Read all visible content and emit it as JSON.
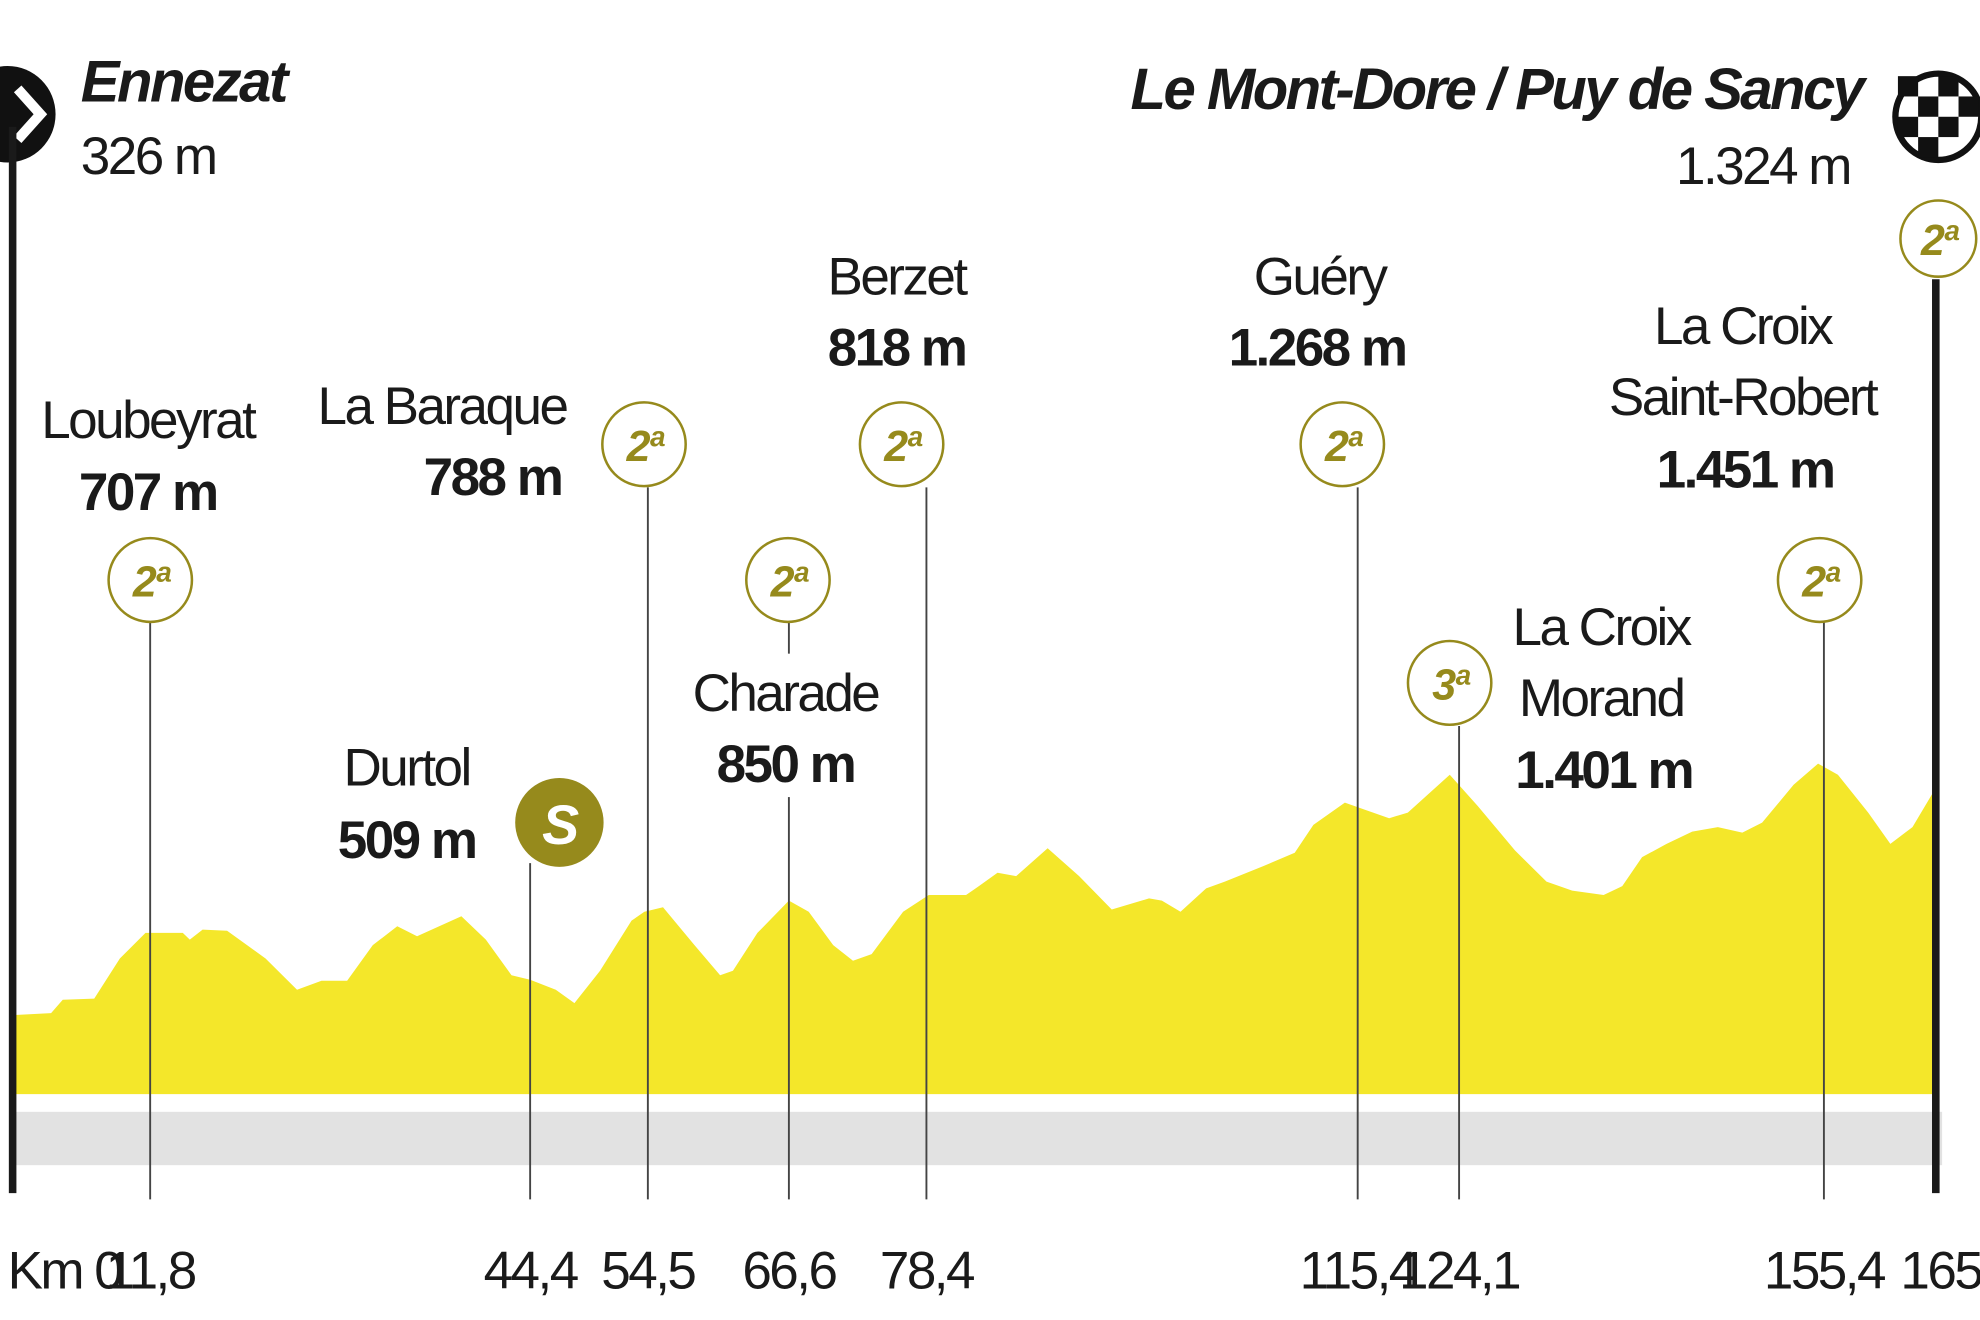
{
  "chart_data": {
    "type": "area",
    "color": "#f4e72a",
    "start": {
      "name": "Ennezat",
      "elevation": "326 m"
    },
    "finish": {
      "name": "Le Mont-Dore / Puy de Sancy",
      "elevation": "1.324 m",
      "category": "2ª"
    },
    "annotations": [
      {
        "name": [
          "Loubeyrat"
        ],
        "elevation": "707 m",
        "category": "2ª"
      },
      {
        "name": [
          "Durtol"
        ],
        "elevation": "509 m",
        "category": "S"
      },
      {
        "name": [
          "La Baraque"
        ],
        "elevation": "788 m",
        "category": "2ª"
      },
      {
        "name": [
          "Charade"
        ],
        "elevation": "850 m",
        "category": "2ª"
      },
      {
        "name": [
          "Berzet"
        ],
        "elevation": "818 m",
        "category": "2ª"
      },
      {
        "name": [
          "Guéry"
        ],
        "elevation": "1.268 m",
        "category": "2ª"
      },
      {
        "name": [
          "La Croix",
          "Morand"
        ],
        "elevation": "1.401 m",
        "category": "3ª"
      },
      {
        "name": [
          "La Croix",
          "Saint-Robert"
        ],
        "elevation": "1.451 m",
        "category": "2ª"
      }
    ],
    "xlim": [
      0,
      165
    ],
    "ylim": [
      0,
      4000
    ],
    "xticks": [
      {
        "value": 0,
        "label": "Km 0"
      },
      {
        "value": 11.8,
        "label": "11,8"
      },
      {
        "value": 44.4,
        "label": "44,4"
      },
      {
        "value": 54.5,
        "label": "54,5"
      },
      {
        "value": 66.6,
        "label": "66,6"
      },
      {
        "value": 78.4,
        "label": "78,4"
      },
      {
        "value": 115.4,
        "label": "115,4"
      },
      {
        "value": 124.1,
        "label": "124,1"
      },
      {
        "value": 155.4,
        "label": "155,4"
      },
      165
    ],
    "x": [
      0,
      3.3,
      4.3,
      7,
      9.2,
      11.4,
      14.6,
      15.2,
      16.3,
      18.4,
      21.7,
      24.4,
      26.5,
      28.7,
      30.9,
      33,
      34.7,
      38.5,
      40.6,
      42.8,
      44.4,
      46.6,
      48.2,
      50.4,
      53.1,
      54.2,
      55.8,
      58.5,
      60.7,
      61.8,
      63.9,
      66.6,
      68.3,
      70.4,
      72.1,
      73.7,
      76.4,
      78.6,
      81.8,
      82.9,
      84.5,
      86.1,
      88.8,
      91.5,
      94.3,
      97.5,
      98.6,
      100.2,
      102.4,
      104,
      107.3,
      110,
      111.6,
      114.3,
      115.9,
      118.1,
      119.7,
      123.3,
      125.7,
      128.9,
      131.6,
      133.8,
      136.5,
      138.1,
      139.8,
      141.9,
      144.1,
      146.3,
      148.4,
      150.1,
      152.8,
      154.9,
      156.6,
      159.2,
      161.1,
      163,
      164.7
    ],
    "values": [
      326,
      335,
      395,
      400,
      580,
      695,
      695,
      665,
      710,
      705,
      580,
      440,
      480,
      480,
      640,
      725,
      680,
      770,
      665,
      505,
      485,
      440,
      380,
      525,
      750,
      790,
      810,
      640,
      505,
      525,
      695,
      840,
      790,
      640,
      570,
      600,
      790,
      865,
      865,
      905,
      965,
      950,
      1075,
      950,
      800,
      850,
      840,
      790,
      895,
      925,
      995,
      1055,
      1180,
      1280,
      1250,
      1210,
      1235,
      1405,
      1265,
      1065,
      925,
      885,
      865,
      905,
      1035,
      1095,
      1150,
      1170,
      1145,
      1190,
      1360,
      1455,
      1405,
      1235,
      1095,
      1170,
      1320
    ]
  }
}
